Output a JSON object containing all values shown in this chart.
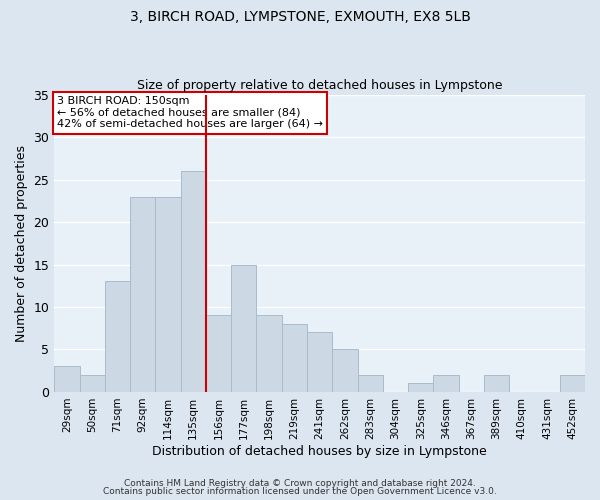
{
  "title": "3, BIRCH ROAD, LYMPSTONE, EXMOUTH, EX8 5LB",
  "subtitle": "Size of property relative to detached houses in Lympstone",
  "xlabel": "Distribution of detached houses by size in Lympstone",
  "ylabel": "Number of detached properties",
  "bar_labels": [
    "29sqm",
    "50sqm",
    "71sqm",
    "92sqm",
    "114sqm",
    "135sqm",
    "156sqm",
    "177sqm",
    "198sqm",
    "219sqm",
    "241sqm",
    "262sqm",
    "283sqm",
    "304sqm",
    "325sqm",
    "346sqm",
    "367sqm",
    "389sqm",
    "410sqm",
    "431sqm",
    "452sqm"
  ],
  "bar_values": [
    3,
    2,
    13,
    23,
    23,
    26,
    9,
    15,
    9,
    8,
    7,
    5,
    2,
    0,
    1,
    2,
    0,
    2,
    0,
    0,
    2
  ],
  "bar_color": "#ccd8e4",
  "bar_edge_color": "#aabccc",
  "vline_x": 6.0,
  "vline_color": "#cc0000",
  "ylim": [
    0,
    35
  ],
  "yticks": [
    0,
    5,
    10,
    15,
    20,
    25,
    30,
    35
  ],
  "annotation_text": "3 BIRCH ROAD: 150sqm\n← 56% of detached houses are smaller (84)\n42% of semi-detached houses are larger (64) →",
  "annotation_box_color": "#ffffff",
  "annotation_box_edge_color": "#cc0000",
  "footer1": "Contains HM Land Registry data © Crown copyright and database right 2024.",
  "footer2": "Contains public sector information licensed under the Open Government Licence v3.0.",
  "bg_color": "#dce6f0",
  "plot_bg_color": "#e8f0f8",
  "grid_color": "#ffffff"
}
